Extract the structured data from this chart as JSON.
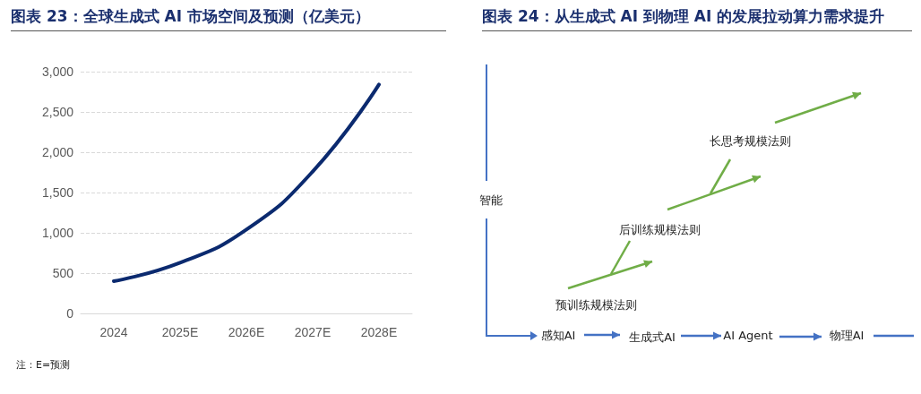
{
  "chart_data": [
    {
      "type": "line",
      "title": "图表 23：全球生成式 AI 市场空间及预测（亿美元）",
      "categories": [
        "2024",
        "2025E",
        "2026E",
        "2027E",
        "2028E"
      ],
      "series": [
        {
          "color": "#0b2a6f",
          "values": [
            400,
            630,
            1040,
            1760,
            2840
          ]
        }
      ],
      "ylim": [
        0,
        3000
      ],
      "yticks": [
        0,
        500,
        {
          "value": 1000,
          "label": "1,000"
        },
        {
          "value": 1500,
          "label": "1,500"
        },
        {
          "value": 2000,
          "label": "2,000"
        },
        {
          "value": 2500,
          "label": "2,500"
        },
        {
          "value": 3000,
          "label": "3,000"
        }
      ],
      "grid": "y",
      "marker": "none",
      "line_style": "solid",
      "annotations": [
        "注：E=预测"
      ]
    },
    {
      "type": "other",
      "title": "图表 24：从生成式 AI 到物理 AI 的发展拉动算力需求提升",
      "annotations": [
        "智能",
        "预训练规模法则",
        "后训练规模法则",
        "长思考规模法则",
        "感知AI",
        "生成式AI",
        "AI Agent",
        "物理AI"
      ]
    }
  ]
}
